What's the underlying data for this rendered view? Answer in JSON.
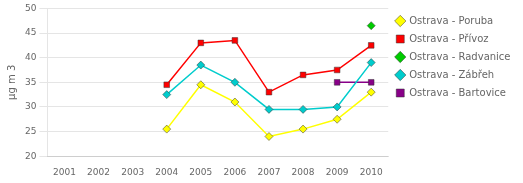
{
  "chart_data": {
    "type": "line",
    "y_label": "µg m 3",
    "xlim": [
      2000.5,
      2010.5
    ],
    "ylim": [
      20,
      50
    ],
    "xticks": [
      2001,
      2002,
      2003,
      2004,
      2005,
      2006,
      2007,
      2008,
      2009,
      2010
    ],
    "yticks": [
      20,
      25,
      30,
      35,
      40,
      45,
      50
    ],
    "grid": "y",
    "legend": "right",
    "series": [
      {
        "name": "Ostrava - Poruba",
        "color": "#ffff00",
        "marker": "diamond",
        "x": [
          2004,
          2005,
          2006,
          2007,
          2008,
          2009,
          2010
        ],
        "values": [
          25.5,
          34.5,
          31.0,
          24.0,
          25.5,
          27.5,
          33.0
        ]
      },
      {
        "name": "Ostrava - Přívoz",
        "color": "#ff0000",
        "marker": "square",
        "x": [
          2004,
          2005,
          2006,
          2007,
          2008,
          2009,
          2010
        ],
        "values": [
          34.5,
          43.0,
          43.5,
          33.0,
          36.5,
          37.5,
          42.5
        ]
      },
      {
        "name": "Ostrava - Radvanice",
        "color": "#00cc00",
        "marker": "diamond",
        "x": [
          2010
        ],
        "values": [
          46.5
        ]
      },
      {
        "name": "Ostrava - Zábřeh",
        "color": "#00cccc",
        "marker": "diamond",
        "x": [
          2004,
          2005,
          2006,
          2007,
          2008,
          2009,
          2010
        ],
        "values": [
          32.5,
          38.5,
          35.0,
          29.5,
          29.5,
          30.0,
          39.0
        ]
      },
      {
        "name": "Ostrava - Bartovice",
        "color": "#880088",
        "marker": "square",
        "x": [
          2009,
          2010
        ],
        "values": [
          35.0,
          35.0
        ]
      }
    ]
  }
}
